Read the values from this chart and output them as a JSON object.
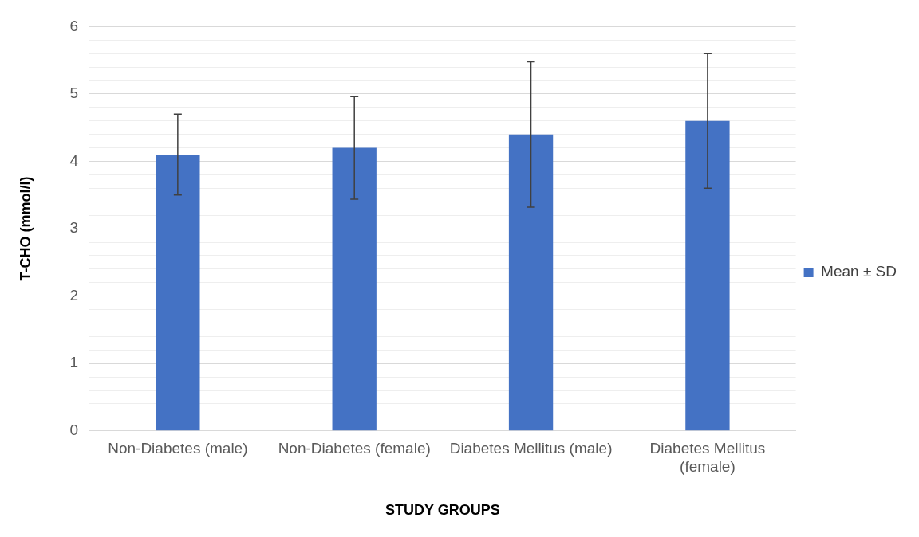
{
  "chart_data": {
    "type": "bar",
    "xlabel": "STUDY GROUPS",
    "ylabel": "T-CHO (mmol/l)",
    "categories": [
      "Non-Diabetes (male)",
      "Non-Diabetes (female)",
      "Diabetes Mellitus (male)",
      "Diabetes Mellitus (female)"
    ],
    "series": [
      {
        "name": "Mean ± SD",
        "color": "#4472c4",
        "values": [
          4.1,
          4.2,
          4.4,
          4.6
        ],
        "errors": [
          0.6,
          0.76,
          1.08,
          1.0
        ]
      }
    ],
    "ylim": [
      0,
      6
    ],
    "yticks": [
      0,
      {
        "value": 0.2,
        "label": null
      },
      {
        "value": 0.4,
        "label": null
      },
      {
        "value": 0.6,
        "label": null
      },
      {
        "value": 0.8,
        "label": null
      },
      1,
      {
        "value": 1.2,
        "label": null
      },
      {
        "value": 1.4,
        "label": null
      },
      {
        "value": 1.6,
        "label": null
      },
      {
        "value": 1.8,
        "label": null
      },
      2,
      {
        "value": 2.2,
        "label": null
      },
      {
        "value": 2.4,
        "label": null
      },
      {
        "value": 2.6,
        "label": null
      },
      {
        "value": 2.8,
        "label": null
      },
      3,
      {
        "value": 3.2,
        "label": null
      },
      {
        "value": 3.4,
        "label": null
      },
      {
        "value": 3.6,
        "label": null
      },
      {
        "value": 3.8,
        "label": null
      },
      4,
      {
        "value": 4.2,
        "label": null
      },
      {
        "value": 4.4,
        "label": null
      },
      {
        "value": 4.6,
        "label": null
      },
      {
        "value": 4.8,
        "label": null
      },
      5,
      {
        "value": 5.2,
        "label": null
      },
      {
        "value": 5.4,
        "label": null
      },
      {
        "value": 5.6,
        "label": null
      },
      {
        "value": 5.8,
        "label": null
      },
      6
    ],
    "grid": "y",
    "legend": "right"
  }
}
